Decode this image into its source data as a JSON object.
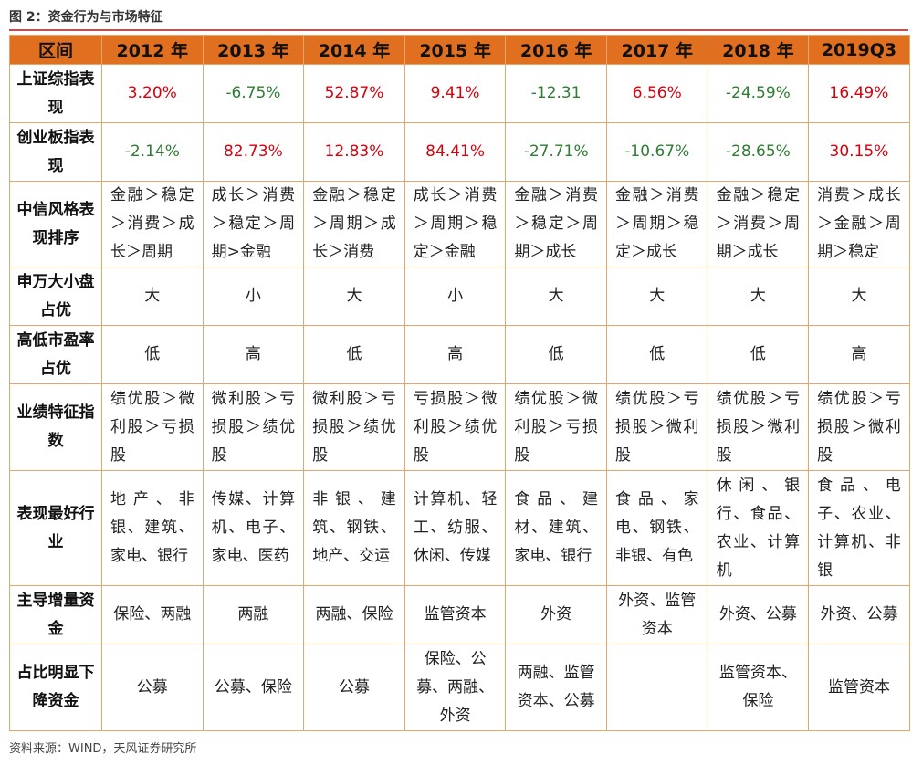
{
  "title": "图 2：资金行为与市场特征",
  "source": "资料来源：WIND，天风证券研究所",
  "colors": {
    "header_bg": "#e06f20",
    "border": "#e3a66c",
    "positive": "#d8000c",
    "negative": "#2e7d32",
    "title_rule": "#c0504d"
  },
  "table": {
    "header": [
      "区间",
      "2012 年",
      "2013 年",
      "2014 年",
      "2015 年",
      "2016 年",
      "2017 年",
      "2018 年",
      "2019Q3"
    ],
    "rows": [
      {
        "label": "上证综指表现",
        "cells": [
          "3.20%",
          "-6.75%",
          "52.87%",
          "9.41%",
          "-12.31",
          "6.56%",
          "-24.59%",
          "16.49%"
        ]
      },
      {
        "label": "创业板指表现",
        "cells": [
          "-2.14%",
          "82.73%",
          "12.83%",
          "84.41%",
          "-27.71%",
          "-10.67%",
          "-28.65%",
          "30.15%"
        ]
      },
      {
        "label": "中信风格表现排序",
        "cells": [
          "金融＞稳定＞消费＞成长＞周期",
          "成长＞消费＞稳定＞周期>金融",
          "金融＞稳定＞周期＞成长＞消费",
          "成长＞消费＞周期＞稳定＞金融",
          "金融＞消费＞稳定＞周期＞成长",
          "金融＞消费＞周期＞稳定＞成长",
          "金融＞稳定＞消费＞周期＞成长",
          "消费＞成长＞金融＞周期＞稳定"
        ]
      },
      {
        "label": "申万大小盘占优",
        "cells": [
          "大",
          "小",
          "大",
          "小",
          "大",
          "大",
          "大",
          "大"
        ]
      },
      {
        "label": "高低市盈率占优",
        "cells": [
          "低",
          "高",
          "低",
          "高",
          "低",
          "低",
          "低",
          "高"
        ]
      },
      {
        "label": "业绩特征指数",
        "cells": [
          "绩优股＞微利股＞亏损股",
          "微利股＞亏损股＞绩优股",
          "微利股＞亏损股＞绩优股",
          "亏损股＞微利股＞绩优股",
          "绩优股＞微利股＞亏损股",
          "绩优股＞亏损股＞微利股",
          "绩优股＞亏损股＞微利股",
          "绩优股＞亏损股＞微利股"
        ]
      },
      {
        "label": "表现最好行业",
        "cells": [
          "地产、非银、建筑、家电、银行",
          "传媒、计算机、电子、家电、医药",
          "非银、建筑、钢铁、地产、交运",
          "计算机、轻工、纺服、休闲、传媒",
          "食品、建材、建筑、家电、银行",
          "食品、家电、钢铁、非银、有色",
          "休闲、银行、食品、农业、计算机",
          "食品、电子、农业、计算机、非银"
        ]
      },
      {
        "label": "主导增量资金",
        "cells": [
          "保险、两融",
          "两融",
          "两融、保险",
          "监管资本",
          "外资",
          "外资、监管资本",
          "外资、公募",
          "外资、公募"
        ]
      },
      {
        "label": "占比明显下降资金",
        "cells": [
          "公募",
          "公募、保险",
          "公募",
          "保险、公募、两融、外资",
          "两融、监管资本、公募",
          "",
          "监管资本、保险",
          "监管资本"
        ]
      }
    ]
  }
}
